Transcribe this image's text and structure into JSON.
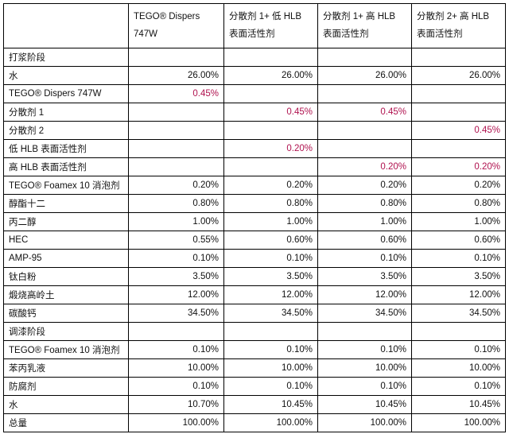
{
  "colors": {
    "highlight": "#b0124f",
    "text": "#111111",
    "border": "#000000"
  },
  "table": {
    "headers": [
      "",
      "TEGO® Dispers 747W",
      "分散剂 1+ 低 HLB 表面活性剂",
      "分散剂 1+ 高 HLB 表面活性剂",
      "分散剂 2+ 高 HLB 表面活性剂"
    ],
    "rows": [
      {
        "label": "打浆阶段",
        "cells": [
          "",
          "",
          "",
          ""
        ],
        "highlight": [
          false,
          false,
          false,
          false
        ]
      },
      {
        "label": "水",
        "cells": [
          "26.00%",
          "26.00%",
          "26.00%",
          "26.00%"
        ],
        "highlight": [
          false,
          false,
          false,
          false
        ]
      },
      {
        "label": "TEGO® Dispers 747W",
        "cells": [
          "0.45%",
          "",
          "",
          ""
        ],
        "highlight": [
          true,
          false,
          false,
          false
        ]
      },
      {
        "label": "分散剂 1",
        "cells": [
          "",
          "0.45%",
          "0.45%",
          ""
        ],
        "highlight": [
          false,
          true,
          true,
          false
        ]
      },
      {
        "label": "分散剂 2",
        "cells": [
          "",
          "",
          "",
          "0.45%"
        ],
        "highlight": [
          false,
          false,
          false,
          true
        ]
      },
      {
        "label": "低 HLB 表面活性剂",
        "cells": [
          "",
          "0.20%",
          "",
          ""
        ],
        "highlight": [
          false,
          true,
          false,
          false
        ]
      },
      {
        "label": "高 HLB 表面活性剂",
        "cells": [
          "",
          "",
          "0.20%",
          "0.20%"
        ],
        "highlight": [
          false,
          false,
          true,
          true
        ]
      },
      {
        "label": "TEGO® Foamex 10 消泡剂",
        "cells": [
          "0.20%",
          "0.20%",
          "0.20%",
          "0.20%"
        ],
        "highlight": [
          false,
          false,
          false,
          false
        ]
      },
      {
        "label": "醇酯十二",
        "cells": [
          "0.80%",
          "0.80%",
          "0.80%",
          "0.80%"
        ],
        "highlight": [
          false,
          false,
          false,
          false
        ]
      },
      {
        "label": "丙二醇",
        "cells": [
          "1.00%",
          "1.00%",
          "1.00%",
          "1.00%"
        ],
        "highlight": [
          false,
          false,
          false,
          false
        ]
      },
      {
        "label": "HEC",
        "cells": [
          "0.55%",
          "0.60%",
          "0.60%",
          "0.60%"
        ],
        "highlight": [
          false,
          false,
          false,
          false
        ]
      },
      {
        "label": "AMP-95",
        "cells": [
          "0.10%",
          "0.10%",
          "0.10%",
          "0.10%"
        ],
        "highlight": [
          false,
          false,
          false,
          false
        ]
      },
      {
        "label": "钛白粉",
        "cells": [
          "3.50%",
          "3.50%",
          "3.50%",
          "3.50%"
        ],
        "highlight": [
          false,
          false,
          false,
          false
        ]
      },
      {
        "label": "煅烧高岭土",
        "cells": [
          "12.00%",
          "12.00%",
          "12.00%",
          "12.00%"
        ],
        "highlight": [
          false,
          false,
          false,
          false
        ]
      },
      {
        "label": "碳酸钙",
        "cells": [
          "34.50%",
          "34.50%",
          "34.50%",
          "34.50%"
        ],
        "highlight": [
          false,
          false,
          false,
          false
        ]
      },
      {
        "label": "调漆阶段",
        "cells": [
          "",
          "",
          "",
          ""
        ],
        "highlight": [
          false,
          false,
          false,
          false
        ]
      },
      {
        "label": "TEGO® Foamex 10 消泡剂",
        "cells": [
          "0.10%",
          "0.10%",
          "0.10%",
          "0.10%"
        ],
        "highlight": [
          false,
          false,
          false,
          false
        ]
      },
      {
        "label": "苯丙乳液",
        "cells": [
          "10.00%",
          "10.00%",
          "10.00%",
          "10.00%"
        ],
        "highlight": [
          false,
          false,
          false,
          false
        ]
      },
      {
        "label": "防腐剂",
        "cells": [
          "0.10%",
          "0.10%",
          "0.10%",
          "0.10%"
        ],
        "highlight": [
          false,
          false,
          false,
          false
        ]
      },
      {
        "label": "水",
        "cells": [
          "10.70%",
          "10.45%",
          "10.45%",
          "10.45%"
        ],
        "highlight": [
          false,
          false,
          false,
          false
        ]
      },
      {
        "label": "总量",
        "cells": [
          "100.00%",
          "100.00%",
          "100.00%",
          "100.00%"
        ],
        "highlight": [
          false,
          false,
          false,
          false
        ]
      }
    ]
  }
}
